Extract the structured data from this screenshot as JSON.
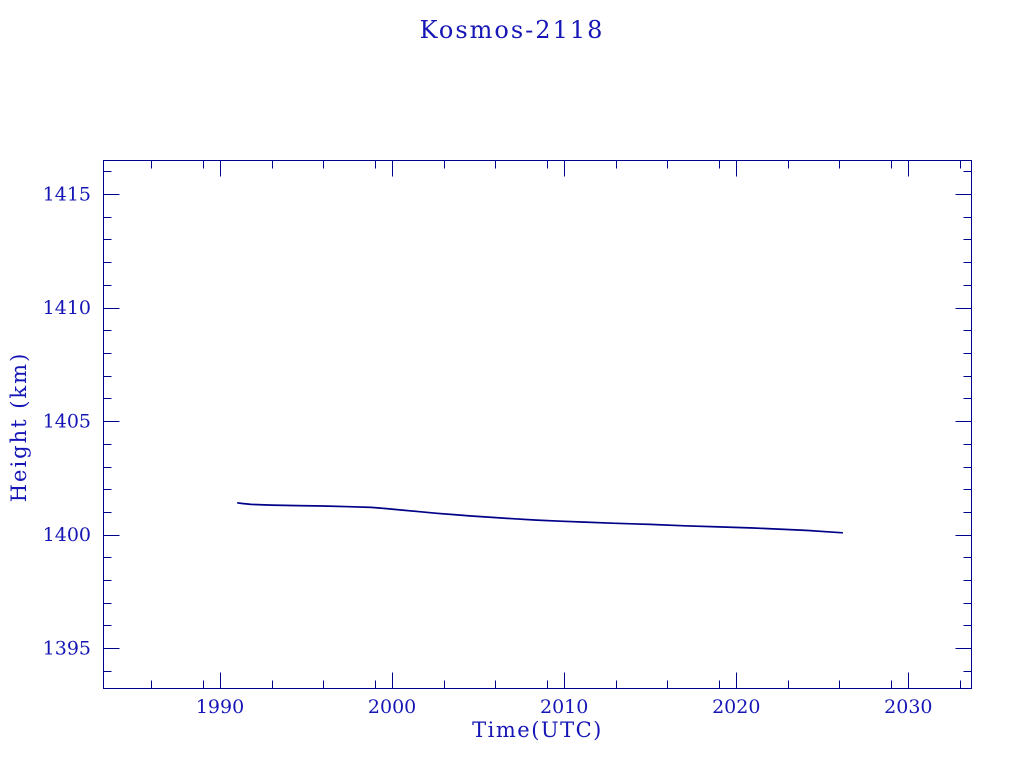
{
  "page": {
    "background": "#ffffff"
  },
  "chart_data": {
    "type": "line",
    "title": "Kosmos-2118",
    "xlabel": "Time(UTC)",
    "ylabel": "Height (km)",
    "xlim": [
      1983.2,
      2033.7
    ],
    "ylim": [
      1393.2,
      1416.5
    ],
    "x_major_ticks": [
      1990,
      2000,
      2010,
      2020,
      2030
    ],
    "x_minor_ticks": [
      1986,
      1989,
      1993,
      1996,
      1999,
      2003,
      2006,
      2009,
      2013,
      2016,
      2019,
      2023,
      2026,
      2029,
      2033
    ],
    "y_major_ticks": [
      1395,
      1400,
      1405,
      1410,
      1415
    ],
    "y_minor_ticks": [
      1394,
      1396,
      1397,
      1398,
      1399,
      1401,
      1402,
      1403,
      1404,
      1406,
      1407,
      1408,
      1409,
      1411,
      1412,
      1413,
      1414,
      1416
    ],
    "grid": false,
    "legend": false,
    "colors": {
      "line": "#000088",
      "axis": "#000090",
      "text": "#1616b6"
    },
    "series": [
      {
        "name": "Kosmos-2118 height",
        "points": [
          [
            1991.0,
            1401.4
          ],
          [
            1991.3,
            1401.37
          ],
          [
            1991.8,
            1401.33
          ],
          [
            1993.0,
            1401.3
          ],
          [
            1994.5,
            1401.28
          ],
          [
            1996.0,
            1401.26
          ],
          [
            1997.5,
            1401.23
          ],
          [
            1998.8,
            1401.2
          ],
          [
            1999.6,
            1401.15
          ],
          [
            2000.6,
            1401.08
          ],
          [
            2001.6,
            1401.01
          ],
          [
            2002.6,
            1400.94
          ],
          [
            2003.6,
            1400.88
          ],
          [
            2004.6,
            1400.82
          ],
          [
            2005.6,
            1400.77
          ],
          [
            2007.0,
            1400.7
          ],
          [
            2008.4,
            1400.64
          ],
          [
            2009.8,
            1400.59
          ],
          [
            2011.2,
            1400.55
          ],
          [
            2013.0,
            1400.5
          ],
          [
            2015.0,
            1400.45
          ],
          [
            2017.0,
            1400.39
          ],
          [
            2019.0,
            1400.34
          ],
          [
            2021.0,
            1400.29
          ],
          [
            2022.8,
            1400.23
          ],
          [
            2024.2,
            1400.18
          ],
          [
            2025.2,
            1400.13
          ],
          [
            2026.2,
            1400.08
          ]
        ]
      }
    ]
  }
}
